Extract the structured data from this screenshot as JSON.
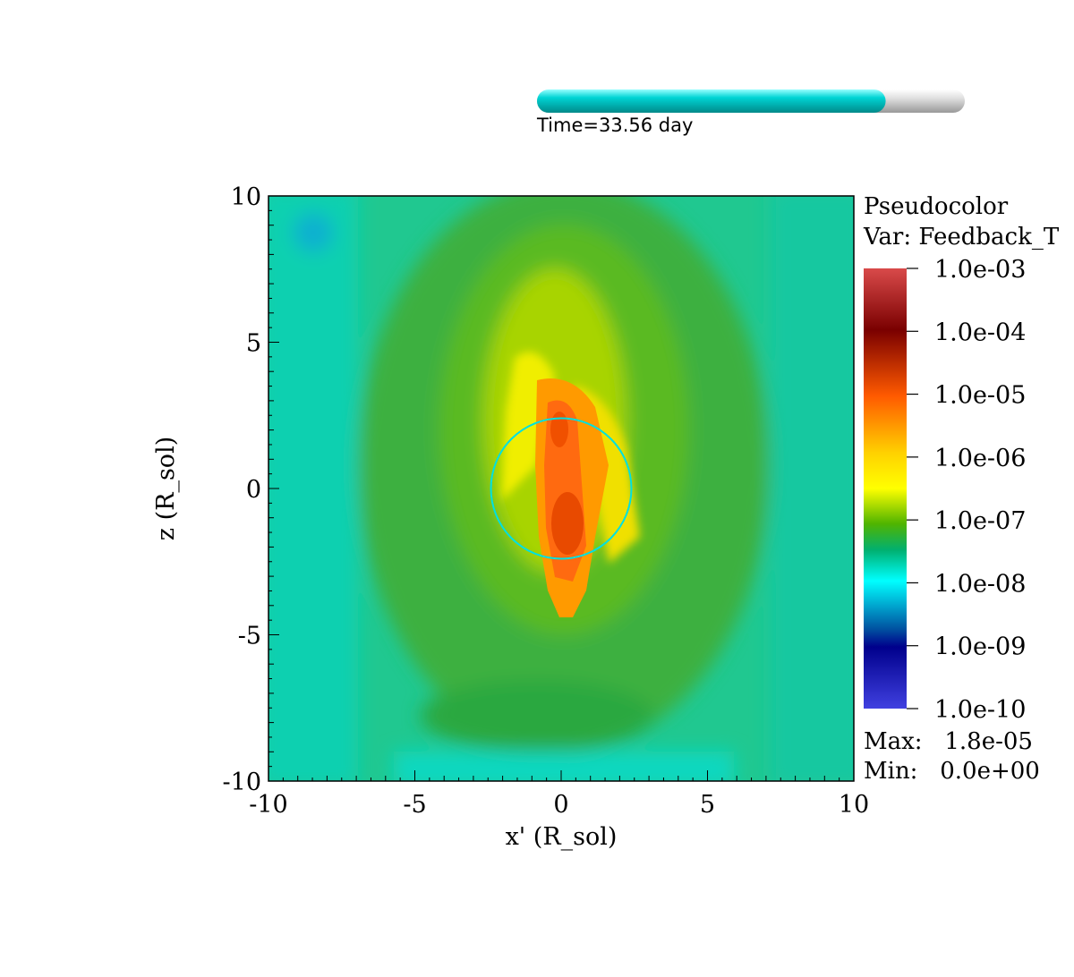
{
  "time": {
    "label": "Time=33.56 day",
    "progress": 0.815,
    "fill_color": "#00c8c8",
    "track_color": "#e8e8e8"
  },
  "legend": {
    "title": "Pseudocolor",
    "var": "Var: Feedback_T",
    "max_label": "Max:   1.8e-05",
    "min_label": "Min:   0.0e+00",
    "ticks": [
      "1.0e-03",
      "1.0e-04",
      "1.0e-05",
      "1.0e-06",
      "1.0e-07",
      "1.0e-08",
      "1.0e-09",
      "1.0e-10"
    ],
    "colors": [
      "#d94a4a",
      "#7a0000",
      "#ff5a00",
      "#ffd200",
      "#ffff00",
      "#50b400",
      "#00b070",
      "#00ffff",
      "#0050a0",
      "#00008c",
      "#4040e0"
    ]
  },
  "chart_data": {
    "type": "heatmap",
    "xlabel": "x' (R_sol)",
    "ylabel": "z (R_sol)",
    "xlim": [
      -10,
      10
    ],
    "ylim": [
      -10,
      10
    ],
    "xticks": [
      -10,
      -5,
      0,
      5,
      10
    ],
    "yticks": [
      -10,
      -5,
      0,
      5,
      10
    ],
    "xtick_labels": [
      "-10",
      "-5",
      "0",
      "5",
      "10"
    ],
    "ytick_labels": [
      "-10",
      "-5",
      "0",
      "5",
      "10"
    ],
    "colorbar_scale": "log",
    "colorbar_range": [
      1e-10,
      0.001
    ],
    "max": "1.8e-05",
    "min": "0.0e+00",
    "circle": {
      "cx": 0,
      "cy": 0,
      "r": 2.4,
      "color": "#00e0e0"
    },
    "background_color": "#20c890"
  }
}
